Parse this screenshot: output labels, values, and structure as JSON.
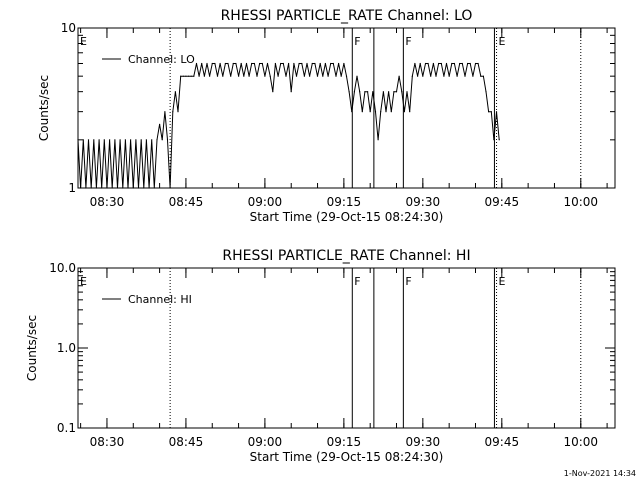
{
  "footer": {
    "timestamp": "1-Nov-2021 14:34"
  },
  "chart_data": [
    {
      "type": "line",
      "title": "RHESSI PARTICLE_RATE Channel: LO",
      "xlabel": "Start Time (29-Oct-15 08:24:30)",
      "ylabel": "Counts/sec",
      "yscale": "log",
      "ylim": [
        1,
        10
      ],
      "xlim_min": [
        24.5,
        104.5
      ],
      "x_tick_labels": [
        "08:30",
        "08:45",
        "09:00",
        "09:15",
        "09:30",
        "09:45",
        "10:00"
      ],
      "x_tick_values_min": [
        30,
        45,
        60,
        75,
        90,
        105,
        120
      ],
      "y_tick_labels": [
        "1",
        "10"
      ],
      "y_tick_values": [
        1,
        10
      ],
      "legend": {
        "label": "Channel: LO",
        "position": "top-left"
      },
      "markers": [
        {
          "label": "E",
          "x_min": 24.5,
          "style": "dotted"
        },
        {
          "label": "",
          "x_min": 42.0,
          "style": "dotted"
        },
        {
          "label": "F",
          "x_min": 76.6,
          "style": "solid"
        },
        {
          "label": "",
          "x_min": 80.7,
          "style": "solid"
        },
        {
          "label": "F",
          "x_min": 86.3,
          "style": "solid"
        },
        {
          "label": "",
          "x_min": 103.6,
          "style": "solid"
        },
        {
          "label": "E",
          "x_min": 104.0,
          "style": "dotted"
        },
        {
          "label": "",
          "x_min": 120.0,
          "style": "dotted"
        }
      ],
      "series": [
        {
          "x_min": [
            24.5,
            25.0,
            25.5,
            26.0,
            26.5,
            27.0,
            27.5,
            28.0,
            28.5,
            29.0,
            29.5,
            30.0,
            30.5,
            31.0,
            31.5,
            32.0,
            32.5,
            33.0,
            33.5,
            34.0,
            34.5,
            35.0,
            35.5,
            36.0,
            36.5,
            37.0,
            37.5,
            38.0,
            38.5,
            39.0,
            39.5,
            40.0,
            40.5,
            41.0,
            41.5,
            42.0,
            42.5,
            43.0,
            43.5,
            44.0,
            44.5,
            45.0,
            45.5,
            46.0,
            46.5,
            47.0,
            47.5,
            48.0,
            48.5,
            49.0,
            49.5,
            50.0,
            50.5,
            51.0,
            51.5,
            52.0,
            52.5,
            53.0,
            53.5,
            54.0,
            54.5,
            55.0,
            55.5,
            56.0,
            56.5,
            57.0,
            57.5,
            58.0,
            58.5,
            59.0,
            59.5,
            60.0,
            60.5,
            61.0,
            61.5,
            62.0,
            62.5,
            63.0,
            63.5,
            64.0,
            64.5,
            65.0,
            65.5,
            66.0,
            66.5,
            67.0,
            67.5,
            68.0,
            68.5,
            69.0,
            69.5,
            70.0,
            70.5,
            71.0,
            71.5,
            72.0,
            72.5,
            73.0,
            73.5,
            74.0,
            74.5,
            75.0,
            75.5,
            76.0,
            76.5,
            77.0,
            77.5,
            78.0,
            78.5,
            79.0,
            79.5,
            80.0,
            80.5,
            81.0,
            81.5,
            82.0,
            82.5,
            83.0,
            83.5,
            84.0,
            84.5,
            85.0,
            85.5,
            86.0,
            86.5,
            87.0,
            87.5,
            88.0,
            88.5,
            89.0,
            89.5,
            90.0,
            90.5,
            91.0,
            91.5,
            92.0,
            92.5,
            93.0,
            93.5,
            94.0,
            94.5,
            95.0,
            95.5,
            96.0,
            96.5,
            97.0,
            97.5,
            98.0,
            98.5,
            99.0,
            99.5,
            100.0,
            100.5,
            101.0,
            101.5,
            102.0,
            102.5,
            103.0,
            103.5,
            104.0,
            104.5
          ],
          "y": [
            2,
            1,
            2,
            1,
            2,
            1,
            2,
            1,
            2,
            1,
            2,
            1,
            2,
            1,
            2,
            1,
            2,
            1,
            2,
            1,
            2,
            1,
            2,
            1,
            2,
            1,
            2,
            1,
            2,
            1,
            2,
            2.5,
            2,
            3,
            2,
            1,
            3,
            4,
            3,
            5,
            5,
            5,
            5,
            5,
            5,
            6,
            5,
            6,
            5,
            6,
            5,
            6,
            6,
            5,
            6,
            5,
            6,
            6,
            5,
            6,
            6,
            5,
            6,
            5,
            6,
            5,
            6,
            6,
            5,
            6,
            6,
            5,
            6,
            5,
            4,
            6,
            5,
            6,
            6,
            5,
            6,
            4,
            6,
            5,
            6,
            6,
            5,
            6,
            5,
            6,
            6,
            5,
            6,
            5,
            6,
            5,
            6,
            6,
            5,
            6,
            5,
            6,
            5,
            4,
            3,
            4,
            5,
            4,
            3,
            4,
            4,
            3,
            4,
            3,
            2,
            3,
            4,
            3,
            4,
            3,
            4,
            4,
            5,
            4,
            3,
            4,
            3,
            5,
            6,
            5,
            6,
            5,
            6,
            6,
            5,
            6,
            5,
            6,
            6,
            5,
            6,
            5,
            6,
            6,
            5,
            6,
            6,
            5,
            6,
            6,
            5,
            6,
            6,
            5,
            5,
            4,
            3,
            3,
            2,
            3,
            2,
            2,
            2,
            1,
            2,
            1
          ]
        }
      ]
    },
    {
      "type": "line",
      "title": "RHESSI PARTICLE_RATE Channel: HI",
      "xlabel": "Start Time (29-Oct-15 08:24:30)",
      "ylabel": "Counts/sec",
      "yscale": "log",
      "ylim": [
        0.1,
        10.0
      ],
      "xlim_min": [
        24.5,
        104.5
      ],
      "x_tick_labels": [
        "08:30",
        "08:45",
        "09:00",
        "09:15",
        "09:30",
        "09:45",
        "10:00"
      ],
      "x_tick_values_min": [
        30,
        45,
        60,
        75,
        90,
        105,
        120
      ],
      "y_tick_labels": [
        "0.1",
        "1.0",
        "10.0"
      ],
      "y_tick_values": [
        0.1,
        1.0,
        10.0
      ],
      "legend": {
        "label": "Channel: HI",
        "position": "top-left"
      },
      "markers": [
        {
          "label": "E",
          "x_min": 24.5,
          "style": "dotted"
        },
        {
          "label": "",
          "x_min": 42.0,
          "style": "dotted"
        },
        {
          "label": "F",
          "x_min": 76.6,
          "style": "solid"
        },
        {
          "label": "",
          "x_min": 80.7,
          "style": "solid"
        },
        {
          "label": "F",
          "x_min": 86.3,
          "style": "solid"
        },
        {
          "label": "",
          "x_min": 103.6,
          "style": "solid"
        },
        {
          "label": "E",
          "x_min": 104.0,
          "style": "dotted"
        },
        {
          "label": "",
          "x_min": 120.0,
          "style": "dotted"
        }
      ],
      "series": []
    }
  ]
}
